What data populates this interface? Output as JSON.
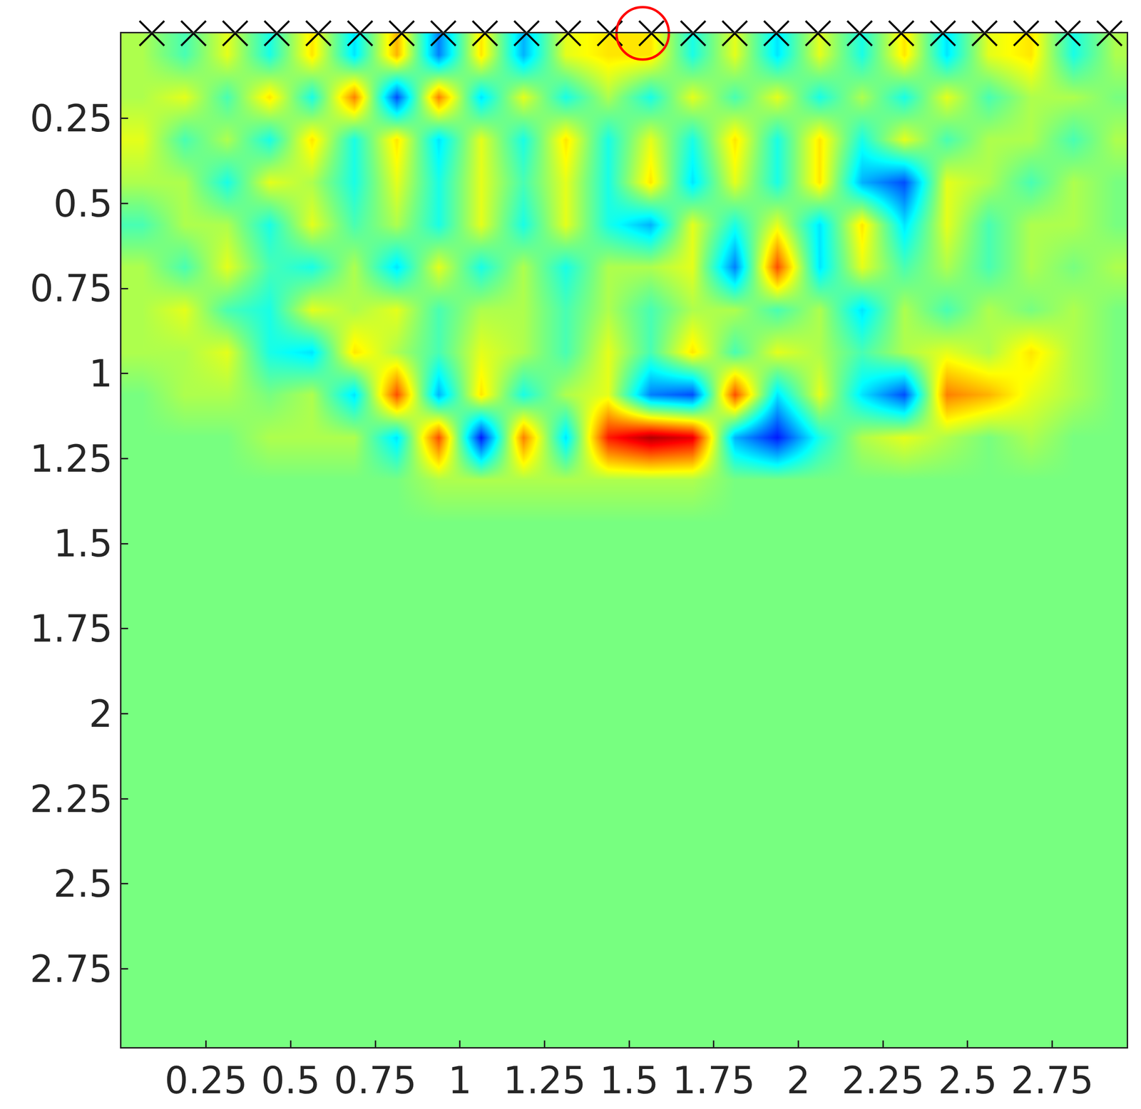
{
  "chart_data": {
    "type": "heatmap",
    "x": [
      0.0625,
      0.1875,
      0.3125,
      0.4375,
      0.5625,
      0.6875,
      0.8125,
      0.9375,
      1.0625,
      1.1875,
      1.3125,
      1.4375,
      1.5625,
      1.6875,
      1.8125,
      1.9375,
      2.0625,
      2.1875,
      2.3125,
      2.4375,
      2.5625,
      2.6875,
      2.8125,
      2.9375
    ],
    "y": [
      0.0625,
      0.1875,
      0.3125,
      0.4375,
      0.5625,
      0.6875,
      0.8125,
      0.9375,
      1.0625,
      1.1875,
      1.3125,
      1.4375,
      1.5625,
      1.6875,
      1.8125,
      1.9375,
      2.0625,
      2.1875,
      2.3125,
      2.4375,
      2.5625,
      2.6875,
      2.8125,
      2.9375
    ],
    "cells": [
      [
        0.1,
        -0.1,
        0.2,
        -0.2,
        0.3,
        -0.3,
        0.4,
        -0.5,
        0.3,
        -0.4,
        0.2,
        0.3,
        0.3,
        -0.2,
        0.2,
        -0.3,
        0.2,
        -0.2,
        0.3,
        -0.3,
        0.2,
        0.3,
        -0.2,
        0.1
      ],
      [
        0.1,
        0.2,
        -0.1,
        0.3,
        -0.2,
        0.5,
        -0.6,
        0.5,
        -0.3,
        0.2,
        -0.2,
        0.1,
        -0.2,
        0.2,
        -0.1,
        0.2,
        -0.2,
        0.1,
        -0.2,
        0.2,
        -0.1,
        0.1,
        0.1,
        0.0
      ],
      [
        0.2,
        -0.1,
        0.1,
        -0.2,
        0.3,
        -0.2,
        0.3,
        -0.3,
        0.2,
        -0.2,
        0.3,
        -0.2,
        0.2,
        -0.2,
        0.3,
        -0.2,
        0.3,
        -0.2,
        0.2,
        -0.1,
        0.1,
        0.1,
        -0.1,
        0.1
      ],
      [
        0.1,
        0.1,
        -0.2,
        0.2,
        0.1,
        -0.2,
        0.2,
        -0.2,
        0.2,
        -0.1,
        0.2,
        -0.2,
        0.3,
        -0.3,
        0.2,
        -0.2,
        0.3,
        -0.4,
        -0.6,
        0.2,
        0.1,
        -0.1,
        0.1,
        0.0
      ],
      [
        -0.1,
        0.1,
        0.1,
        -0.2,
        0.2,
        -0.1,
        0.1,
        -0.2,
        0.2,
        -0.2,
        0.2,
        -0.2,
        -0.4,
        0.2,
        -0.2,
        0.2,
        -0.3,
        0.3,
        -0.3,
        0.2,
        -0.1,
        0.1,
        0.1,
        0.0
      ],
      [
        0.1,
        -0.1,
        0.2,
        -0.1,
        -0.2,
        0.1,
        -0.3,
        0.2,
        -0.2,
        0.1,
        -0.2,
        0.1,
        0.1,
        0.2,
        -0.5,
        0.6,
        -0.3,
        0.2,
        -0.1,
        0.1,
        -0.1,
        0.1,
        0.0,
        0.1
      ],
      [
        0.1,
        0.2,
        -0.1,
        -0.2,
        0.2,
        0.1,
        0.2,
        -0.1,
        0.1,
        0.1,
        -0.1,
        0.1,
        -0.1,
        0.1,
        0.1,
        -0.1,
        0.1,
        -0.3,
        0.1,
        -0.1,
        0.1,
        0.0,
        0.1,
        0.0
      ],
      [
        0.1,
        0.1,
        0.2,
        -0.2,
        -0.3,
        0.3,
        0.1,
        -0.1,
        0.2,
        0.1,
        -0.1,
        0.2,
        -0.1,
        0.3,
        -0.1,
        0.2,
        0.1,
        -0.1,
        0.1,
        0.2,
        0.1,
        0.3,
        0.1,
        0.0
      ],
      [
        0.0,
        0.1,
        0.1,
        0.0,
        0.1,
        -0.3,
        0.6,
        -0.4,
        0.3,
        -0.2,
        0.1,
        0.2,
        -0.5,
        -0.6,
        0.6,
        -0.3,
        0.2,
        -0.3,
        -0.6,
        0.5,
        0.4,
        0.2,
        0.1,
        0.0
      ],
      [
        0.0,
        0.0,
        0.0,
        0.1,
        0.1,
        0.1,
        -0.3,
        0.6,
        -0.7,
        0.5,
        -0.3,
        0.7,
        0.9,
        0.8,
        -0.4,
        -0.7,
        -0.2,
        0.1,
        0.2,
        0.1,
        0.0,
        0.1,
        0.0,
        0.0
      ],
      [
        0.0,
        0.0,
        0.0,
        0.0,
        0.0,
        0.0,
        0.0,
        0.1,
        0.1,
        0.1,
        0.1,
        0.1,
        0.1,
        0.1,
        0.0,
        0.0,
        0.0,
        0.0,
        0.0,
        0.0,
        0.0,
        0.0,
        0.0,
        0.0
      ],
      [
        0,
        0,
        0,
        0,
        0,
        0,
        0,
        0,
        0,
        0,
        0,
        0,
        0,
        0,
        0,
        0,
        0,
        0,
        0,
        0,
        0,
        0,
        0,
        0
      ],
      [
        0,
        0,
        0,
        0,
        0,
        0,
        0,
        0,
        0,
        0,
        0,
        0,
        0,
        0,
        0,
        0,
        0,
        0,
        0,
        0,
        0,
        0,
        0,
        0
      ],
      [
        0,
        0,
        0,
        0,
        0,
        0,
        0,
        0,
        0,
        0,
        0,
        0,
        0,
        0,
        0,
        0,
        0,
        0,
        0,
        0,
        0,
        0,
        0,
        0
      ],
      [
        0,
        0,
        0,
        0,
        0,
        0,
        0,
        0,
        0,
        0,
        0,
        0,
        0,
        0,
        0,
        0,
        0,
        0,
        0,
        0,
        0,
        0,
        0,
        0
      ],
      [
        0,
        0,
        0,
        0,
        0,
        0,
        0,
        0,
        0,
        0,
        0,
        0,
        0,
        0,
        0,
        0,
        0,
        0,
        0,
        0,
        0,
        0,
        0,
        0
      ],
      [
        0,
        0,
        0,
        0,
        0,
        0,
        0,
        0,
        0,
        0,
        0,
        0,
        0,
        0,
        0,
        0,
        0,
        0,
        0,
        0,
        0,
        0,
        0,
        0
      ],
      [
        0,
        0,
        0,
        0,
        0,
        0,
        0,
        0,
        0,
        0,
        0,
        0,
        0,
        0,
        0,
        0,
        0,
        0,
        0,
        0,
        0,
        0,
        0,
        0
      ],
      [
        0,
        0,
        0,
        0,
        0,
        0,
        0,
        0,
        0,
        0,
        0,
        0,
        0,
        0,
        0,
        0,
        0,
        0,
        0,
        0,
        0,
        0,
        0,
        0
      ],
      [
        0,
        0,
        0,
        0,
        0,
        0,
        0,
        0,
        0,
        0,
        0,
        0,
        0,
        0,
        0,
        0,
        0,
        0,
        0,
        0,
        0,
        0,
        0,
        0
      ],
      [
        0,
        0,
        0,
        0,
        0,
        0,
        0,
        0,
        0,
        0,
        0,
        0,
        0,
        0,
        0,
        0,
        0,
        0,
        0,
        0,
        0,
        0,
        0,
        0
      ],
      [
        0,
        0,
        0,
        0,
        0,
        0,
        0,
        0,
        0,
        0,
        0,
        0,
        0,
        0,
        0,
        0,
        0,
        0,
        0,
        0,
        0,
        0,
        0,
        0
      ],
      [
        0,
        0,
        0,
        0,
        0,
        0,
        0,
        0,
        0,
        0,
        0,
        0,
        0,
        0,
        0,
        0,
        0,
        0,
        0,
        0,
        0,
        0,
        0,
        0
      ],
      [
        0,
        0,
        0,
        0,
        0,
        0,
        0,
        0,
        0,
        0,
        0,
        0,
        0,
        0,
        0,
        0,
        0,
        0,
        0,
        0,
        0,
        0,
        0,
        0
      ]
    ],
    "zlim": [
      -1,
      1
    ],
    "xlim": [
      0,
      2.97
    ],
    "ylim": [
      2.98,
      0
    ],
    "xticks": [
      0.25,
      0.5,
      0.75,
      1,
      1.25,
      1.5,
      1.75,
      2,
      2.25,
      2.5,
      2.75
    ],
    "yticks": [
      0.25,
      0.5,
      0.75,
      1,
      1.25,
      1.5,
      1.75,
      2,
      2.25,
      2.5,
      2.75
    ],
    "grid": true,
    "receivers": {
      "x": [
        0.09,
        0.213,
        0.336,
        0.459,
        0.582,
        0.705,
        0.828,
        0.951,
        1.074,
        1.197,
        1.32,
        1.443,
        1.566,
        1.689,
        1.812,
        1.935,
        2.058,
        2.181,
        2.304,
        2.427,
        2.55,
        2.673,
        2.796,
        2.919
      ],
      "y": 0,
      "marker": "x",
      "color": "#000000"
    },
    "source": {
      "x": 1.54,
      "y": 0,
      "marker": "circle-open",
      "color": "#ff0000"
    }
  }
}
